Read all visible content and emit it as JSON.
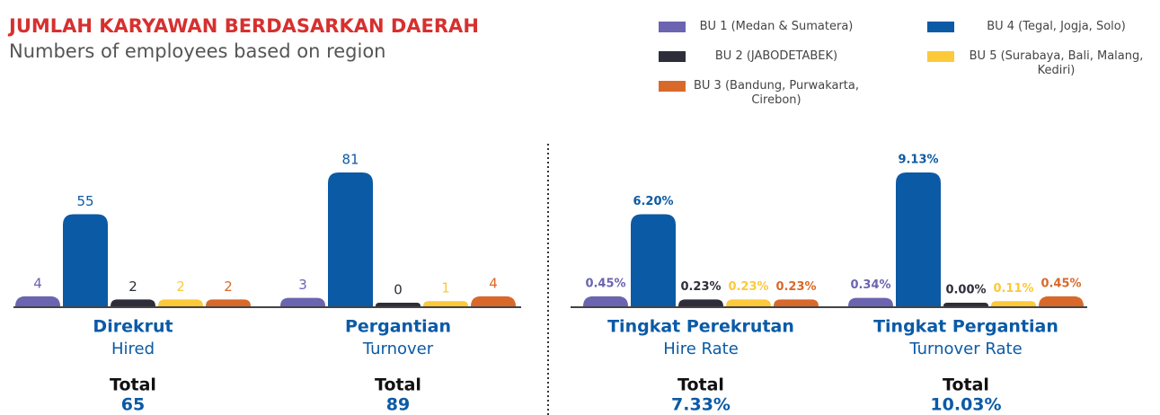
{
  "title": "JUMLAH KARYAWAN BERDASARKAN DAERAH",
  "subtitle": "Numbers of employees based on region",
  "chart_data": [
    {
      "type": "bar",
      "categories": [
        "Direkrut",
        "Pergantian"
      ],
      "category_subtitles": [
        "Hired",
        "Turnover"
      ],
      "total_label": "Total",
      "totals": [
        65,
        89
      ],
      "series": [
        {
          "name": "BU 1 (Medan & Sumatera)",
          "color": "#6b64b0",
          "values": [
            4,
            3
          ]
        },
        {
          "name": "BU 4 (Tegal, Jogja, Solo)",
          "color": "#0b5aa6",
          "values": [
            55,
            81
          ]
        },
        {
          "name": "BU 2 (JABODETABEK)",
          "color": "#2d2e3a",
          "values": [
            2,
            0
          ]
        },
        {
          "name": "BU 5 (Surabaya, Bali, Malang, Kediri)",
          "color": "#fcc93a",
          "values": [
            2,
            1
          ]
        },
        {
          "name": "BU 3 (Bandung, Purwakarta, Cirebon)",
          "color": "#d9692a",
          "values": [
            2,
            4
          ]
        }
      ]
    },
    {
      "type": "bar",
      "categories": [
        "Tingkat Perekrutan",
        "Tingkat Pergantian"
      ],
      "category_subtitles": [
        "Hire Rate",
        "Turnover Rate"
      ],
      "total_label": "Total",
      "totals": [
        7.33,
        10.03
      ],
      "total_labels": [
        "7.33%",
        "10.03%"
      ],
      "series": [
        {
          "color": "#6b64b0",
          "values": [
            0.45,
            0.34
          ],
          "value_labels": [
            "0.45%",
            "0.34%"
          ]
        },
        {
          "color": "#0b5aa6",
          "values": [
            6.2,
            9.13
          ],
          "value_labels": [
            "6.20%",
            "9.13%"
          ]
        },
        {
          "color": "#2d2e3a",
          "values": [
            0.23,
            0.0
          ],
          "value_labels": [
            "0.23%",
            "0.00%"
          ]
        },
        {
          "color": "#fcc93a",
          "values": [
            0.23,
            0.11
          ],
          "value_labels": [
            "0.23%",
            "0.11%"
          ]
        },
        {
          "color": "#d9692a",
          "values": [
            0.23,
            0.45
          ],
          "value_labels": [
            "0.23%",
            "0.45%"
          ]
        }
      ]
    }
  ]
}
